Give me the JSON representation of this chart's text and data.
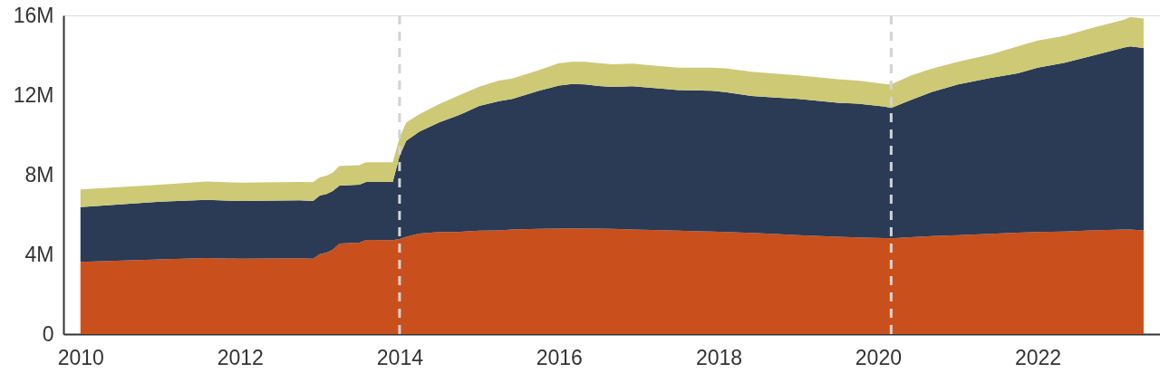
{
  "chart_data": {
    "type": "area",
    "stacked": true,
    "x": [
      "2010-01",
      "2011-01",
      "2011-08",
      "2012-01",
      "2012-10",
      "2012-12",
      "2013-01",
      "2013-02",
      "2013-03",
      "2013-04",
      "2013-07",
      "2013-08",
      "2013-12",
      "2014-01",
      "2014-02",
      "2014-04",
      "2014-07",
      "2014-10",
      "2015-01",
      "2015-04",
      "2015-06",
      "2015-10",
      "2016-01",
      "2016-03",
      "2016-05",
      "2016-07",
      "2016-09",
      "2016-12",
      "2017-03",
      "2017-07",
      "2017-12",
      "2018-02",
      "2018-06",
      "2018-09",
      "2019-01",
      "2019-07",
      "2019-10",
      "2020-02",
      "2020-03",
      "2020-06",
      "2020-09",
      "2021-01",
      "2021-06",
      "2021-10",
      "2022-01",
      "2022-05",
      "2022-09",
      "2023-02",
      "2023-03",
      "2023-05"
    ],
    "series": [
      {
        "color": "#c9501c",
        "values": [
          3630000,
          3750000,
          3820000,
          3780000,
          3810000,
          3780000,
          4010000,
          4090000,
          4240000,
          4540000,
          4590000,
          4730000,
          4720000,
          4770000,
          4890000,
          5050000,
          5120000,
          5130000,
          5190000,
          5200000,
          5250000,
          5280000,
          5300000,
          5310000,
          5300000,
          5290000,
          5280000,
          5250000,
          5230000,
          5190000,
          5150000,
          5120000,
          5080000,
          5030000,
          4970000,
          4890000,
          4850000,
          4820000,
          4810000,
          4860000,
          4920000,
          4970000,
          5030000,
          5090000,
          5120000,
          5150000,
          5200000,
          5250000,
          5250000,
          5200000
        ]
      },
      {
        "color": "#2b3a55",
        "values": [
          2750000,
          2900000,
          2920000,
          2900000,
          2910000,
          2900000,
          2940000,
          2940000,
          2940000,
          2920000,
          2910000,
          2910000,
          2920000,
          4170000,
          4810000,
          5110000,
          5500000,
          5870000,
          6270000,
          6490000,
          6560000,
          6940000,
          7180000,
          7250000,
          7230000,
          7160000,
          7130000,
          7190000,
          7130000,
          7060000,
          7070000,
          7030000,
          6880000,
          6860000,
          6840000,
          6720000,
          6720000,
          6600000,
          6540000,
          6900000,
          7230000,
          7560000,
          7830000,
          8000000,
          8250000,
          8460000,
          8750000,
          9140000,
          9190000,
          9160000
        ]
      },
      {
        "color": "#cec975",
        "values": [
          880000,
          850000,
          920000,
          920000,
          920000,
          950000,
          920000,
          920000,
          920000,
          980000,
          980000,
          980000,
          980000,
          920000,
          920000,
          870000,
          920000,
          990000,
          960000,
          1040000,
          1020000,
          1030000,
          1120000,
          1110000,
          1140000,
          1150000,
          1140000,
          1140000,
          1130000,
          1120000,
          1150000,
          1190000,
          1210000,
          1200000,
          1180000,
          1190000,
          1160000,
          1140000,
          1180000,
          1230000,
          1170000,
          1140000,
          1190000,
          1350000,
          1370000,
          1360000,
          1400000,
          1390000,
          1480000,
          1480000
        ]
      }
    ],
    "xlim": [
      "2009-10-15",
      "2023-07-15"
    ],
    "xticks": [
      "2010",
      "2012",
      "2014",
      "2016",
      "2018",
      "2020",
      "2022"
    ],
    "ylim": [
      0,
      16000000
    ],
    "yticks": [
      {
        "value": 0,
        "label": "0"
      },
      {
        "value": 4000000,
        "label": "4M"
      },
      {
        "value": 8000000,
        "label": "8M"
      },
      {
        "value": 12000000,
        "label": "12M"
      },
      {
        "value": 16000000,
        "label": "16M"
      }
    ],
    "ref_lines": [
      {
        "axis": "x",
        "value": "2014-01",
        "color": "#d3d3d3",
        "line_style": "dashed"
      },
      {
        "axis": "x",
        "value": "2020-03",
        "color": "#d3d3d3",
        "line_style": "dashed"
      }
    ]
  }
}
